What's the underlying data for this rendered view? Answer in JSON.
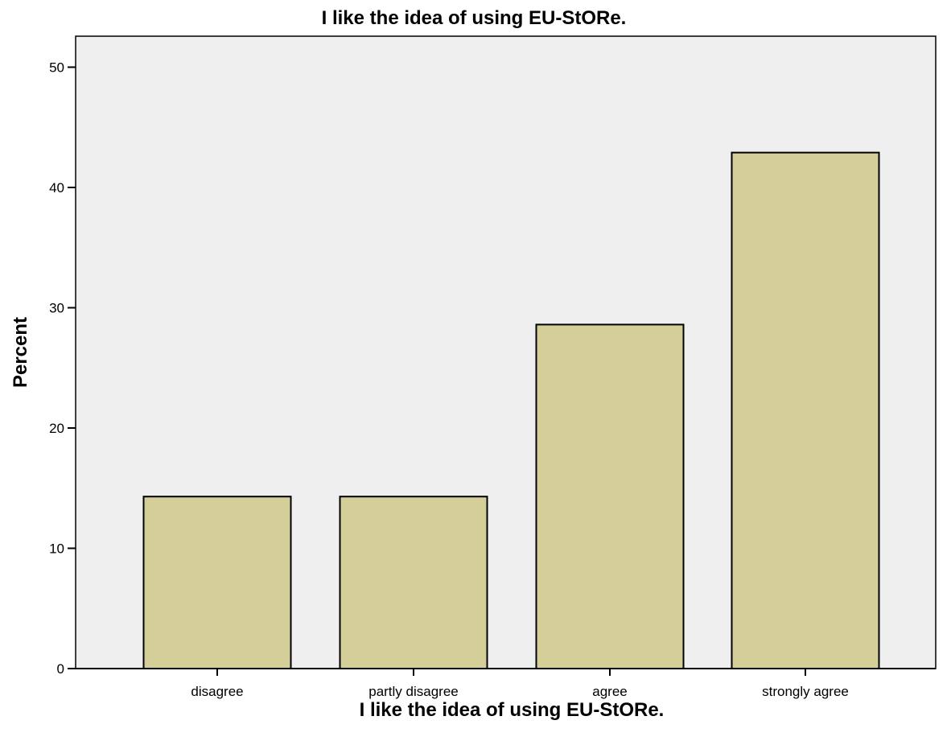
{
  "chart_data": {
    "type": "bar",
    "title": "I like the idea of using EU-StORe.",
    "xlabel": "I like the idea of using EU-StORe.",
    "ylabel": "Percent",
    "categories": [
      "disagree",
      "partly disagree",
      "agree",
      "strongly agree"
    ],
    "values": [
      14.3,
      14.3,
      28.6,
      42.9
    ],
    "ylim": [
      0,
      52
    ],
    "yticks": [
      0,
      10,
      20,
      30,
      40,
      50
    ],
    "grid": false,
    "colors": {
      "bar_fill": "#d4ce98",
      "bar_stroke": "#000000",
      "plot_background": "#efefef"
    }
  }
}
